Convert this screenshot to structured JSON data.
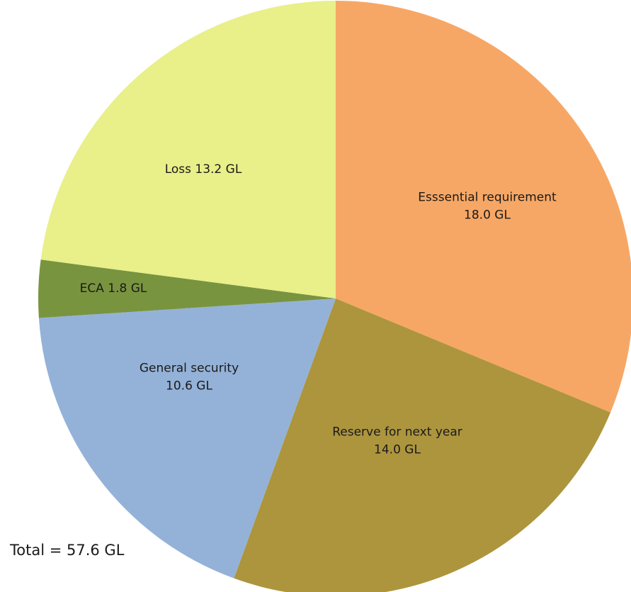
{
  "chart_data": {
    "type": "pie",
    "slices": [
      {
        "label_lines": [
          "Esssential requirement",
          "18.0 GL"
        ],
        "value": 18.0,
        "color": "#F7A765"
      },
      {
        "label_lines": [
          "Reserve for next year",
          "14.0 GL"
        ],
        "value": 14.0,
        "color": "#AD953E"
      },
      {
        "label_lines": [
          "General security",
          "10.6 GL"
        ],
        "value": 10.6,
        "color": "#94B2D8"
      },
      {
        "label_lines": [
          "ECA 1.8 GL"
        ],
        "value": 1.8,
        "color": "#79943F"
      },
      {
        "label_lines": [
          "Loss  13.2 GL"
        ],
        "value": 13.2,
        "color": "#E9EF89"
      }
    ],
    "start_angle_deg": 0,
    "direction": "clockwise",
    "total_text": "Total = 57.6 GL"
  }
}
